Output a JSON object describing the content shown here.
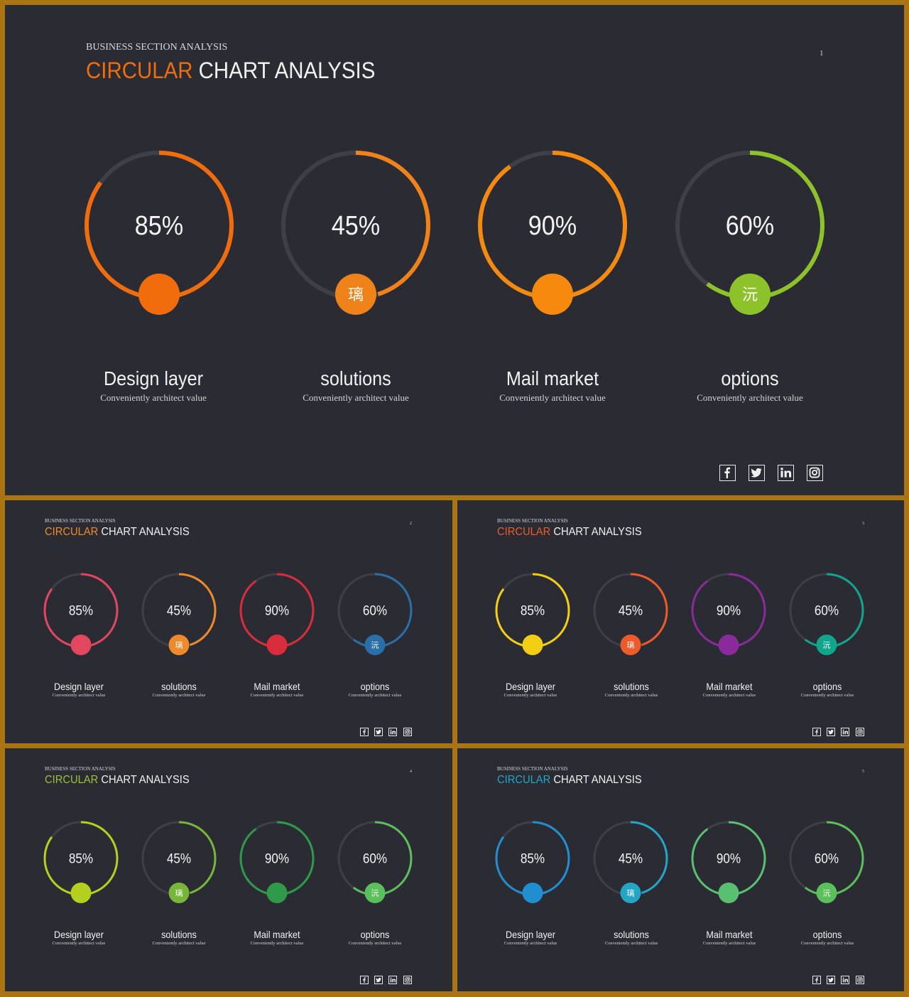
{
  "slides": [
    {
      "kicker": "BUSINESS SECTION ANALYSIS",
      "title_accent": "CIRCULAR",
      "title_rest": " CHART ANALYSIS",
      "page": "1",
      "accent_color": "#f06c0c",
      "colors": [
        "#f06c0c",
        "#f0821a",
        "#f58a0e",
        "#8dc22a"
      ],
      "icons": [
        "",
        "璃",
        "",
        "沅"
      ]
    },
    {
      "kicker": "BUSINESS SECTION ANALYSIS",
      "title_accent": "CIRCULAR",
      "title_rest": " CHART ANALYSIS",
      "page": "2",
      "accent_color": "#ef8a2c",
      "colors": [
        "#e2475f",
        "#ef8a2c",
        "#d92c3c",
        "#2a6fa8"
      ],
      "icons": [
        "",
        "璃",
        "",
        "沅"
      ]
    },
    {
      "kicker": "BUSINESS SECTION ANALYSIS",
      "title_accent": "CIRCULAR",
      "title_rest": " CHART ANALYSIS",
      "page": "3",
      "accent_color": "#ee5a2a",
      "colors": [
        "#f2cf14",
        "#ee5a2a",
        "#8b2a9a",
        "#12a58e"
      ],
      "icons": [
        "",
        "璃",
        "",
        "沅"
      ]
    },
    {
      "kicker": "BUSINESS SECTION ANALYSIS",
      "title_accent": "CIRCULAR",
      "title_rest": " CHART ANALYSIS",
      "page": "4",
      "accent_color": "#9ac436",
      "colors": [
        "#b4cf1e",
        "#78b63a",
        "#2e9a4a",
        "#5bbf5b"
      ],
      "icons": [
        "",
        "璃",
        "",
        "沅"
      ]
    },
    {
      "kicker": "BUSINESS SECTION ANALYSIS",
      "title_accent": "CIRCULAR",
      "title_rest": " CHART ANALYSIS",
      "page": "5",
      "accent_color": "#22a5c8",
      "colors": [
        "#1f8fd0",
        "#23a6c6",
        "#58c070",
        "#5bbf5b"
      ],
      "icons": [
        "",
        "璃",
        "",
        "沅"
      ]
    }
  ],
  "chart_data": {
    "type": "pie",
    "subtype": "progress-rings",
    "categories": [
      "Design layer",
      "solutions",
      "Mail market",
      "options"
    ],
    "values": [
      85,
      45,
      90,
      60
    ],
    "value_labels": [
      "85%",
      "45%",
      "90%",
      "60%"
    ],
    "subtitles": [
      "Conveniently architect value",
      "Conveniently architect value",
      "Conveniently architect value",
      "Conveniently architect value"
    ],
    "track_color": "#3e3f48"
  },
  "social": [
    "f",
    "t",
    "in",
    "ig"
  ]
}
